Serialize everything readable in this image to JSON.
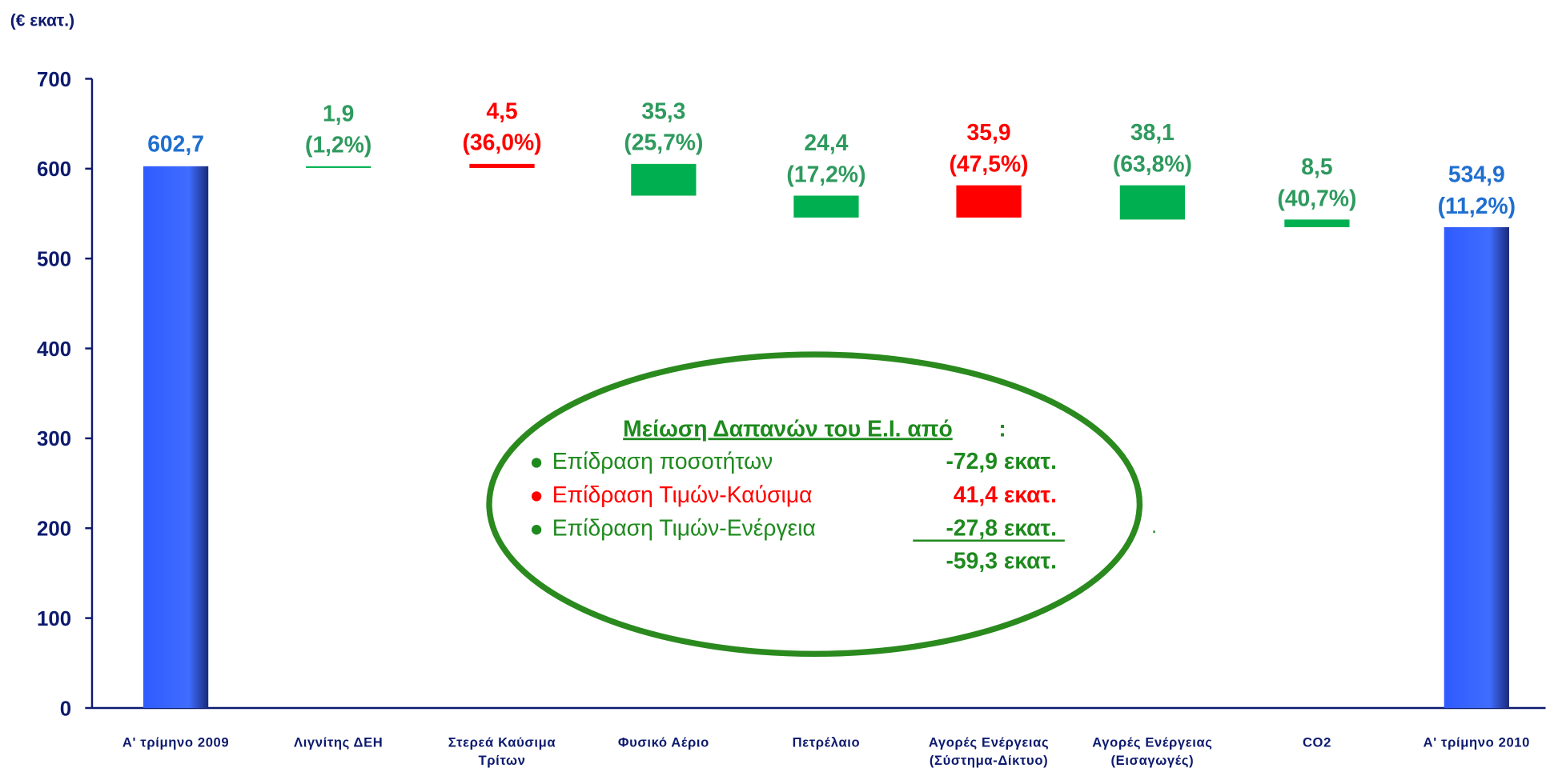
{
  "chart_data": {
    "type": "waterfall",
    "unit_label": "(€ εκατ.)",
    "categories": [
      [
        "Α' τρίμηνο 2009"
      ],
      [
        "Λιγνίτης ΔΕΗ"
      ],
      [
        "Στερεά Καύσιμα",
        "Τρίτων"
      ],
      [
        "Φυσικό Αέριο"
      ],
      [
        "Πετρέλαιο"
      ],
      [
        "Αγορές Ενέργειας",
        "(Σύστημα-Δίκτυο)"
      ],
      [
        "Αγορές Ενέργειας",
        "(Εισαγωγές)"
      ],
      [
        "CO2"
      ],
      [
        "Α' τρίμηνο 2010"
      ]
    ],
    "values": [
      602.7,
      1.9,
      4.5,
      35.3,
      24.4,
      35.9,
      38.1,
      8.5,
      534.9
    ],
    "value_labels": [
      "602,7",
      "1,9",
      "4,5",
      "35,3",
      "24,4",
      "35,9",
      "38,1",
      "8,5",
      "534,9"
    ],
    "change_labels": [
      null,
      "(1,2%)",
      "(36,0%)",
      "(25,7%)",
      "(17,2%)",
      "(47,5%)",
      "(63,8%)",
      "(40,7%)",
      "(11,2%)"
    ],
    "measure": [
      "total",
      "decrease",
      "increase",
      "decrease",
      "decrease",
      "increase",
      "decrease",
      "decrease",
      "total"
    ],
    "colors": {
      "total": "#2f5bff",
      "decrease": "#00b050",
      "increase": "#ff0000"
    },
    "label_colors": {
      "total": "#1f6fcf",
      "decrease": "#2e9a5e",
      "increase": "#ff0000"
    },
    "ylim": [
      0,
      700
    ],
    "yticks": [
      0,
      100,
      200,
      300,
      400,
      500,
      600,
      700
    ],
    "annotation": {
      "title": "Μείωση Δαπανών του Ε.Ι. από",
      "title_suffix": ":",
      "items": [
        {
          "label": "Επίδραση ποσοτήτων",
          "value": "-72,9 εκατ.",
          "color": "#1e8a1e"
        },
        {
          "label": "Επίδραση Τιμών-Καύσιμα",
          "value": "41,4 εκατ.",
          "color": "#ff0000"
        },
        {
          "label": "Επίδραση Τιμών-Ενέργεια",
          "value": "-27,8 εκατ.",
          "color": "#1e8a1e"
        }
      ],
      "total": "-59,3 εκατ.",
      "note": "."
    }
  }
}
